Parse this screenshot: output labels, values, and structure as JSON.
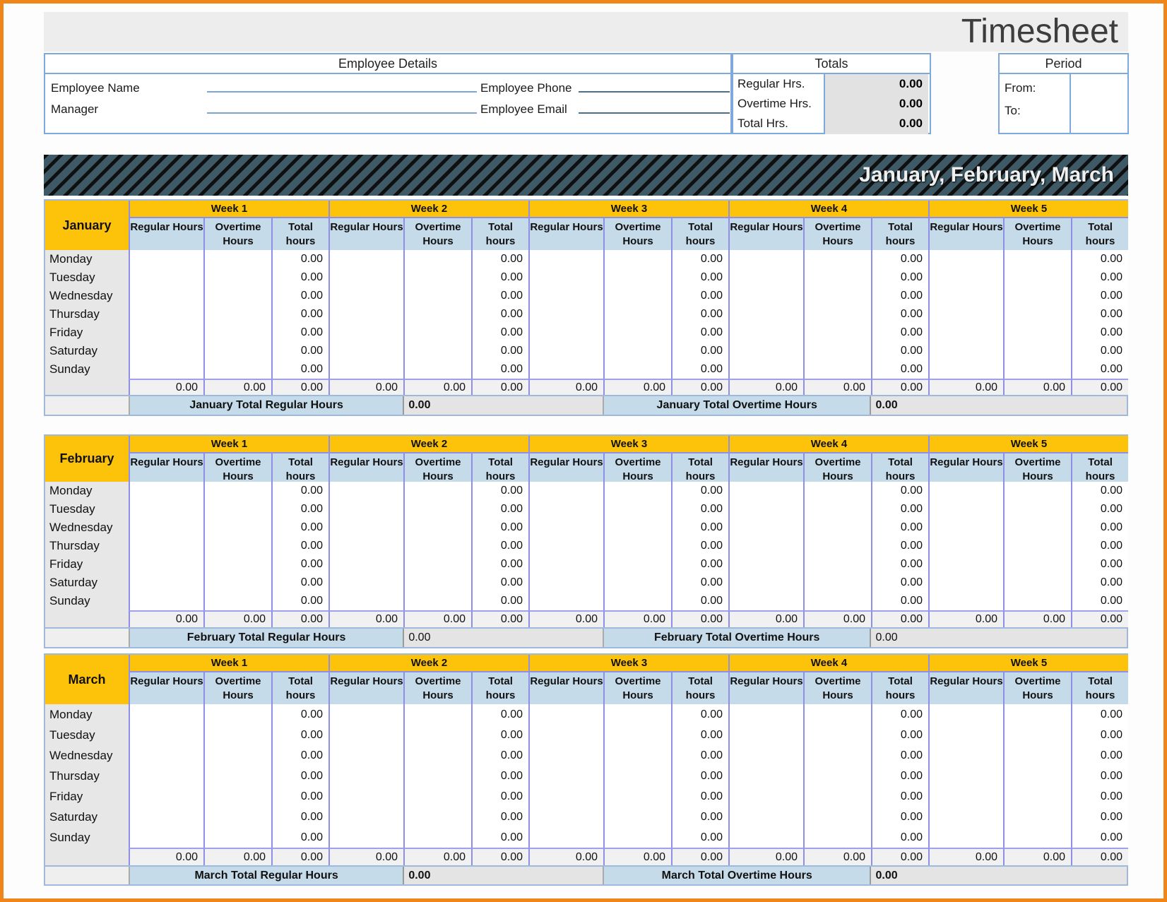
{
  "title": "Timesheet",
  "employee_details": {
    "header": "Employee Details",
    "name_label": "Employee Name",
    "manager_label": "Manager",
    "phone_label": "Employee Phone",
    "email_label": "Employee Email",
    "name_value": "",
    "manager_value": "",
    "phone_value": "",
    "email_value": ""
  },
  "totals": {
    "header": "Totals",
    "rows": [
      {
        "label": "Regular Hrs.",
        "value": "0.00"
      },
      {
        "label": "Overtime Hrs.",
        "value": "0.00"
      },
      {
        "label": "Total Hrs.",
        "value": "0.00"
      }
    ]
  },
  "period": {
    "header": "Period",
    "from_label": "From:",
    "to_label": "To:",
    "from_value": "",
    "to_value": ""
  },
  "banner_title": "January, February, March",
  "timesheet_table": {
    "week_headers": [
      "Week 1",
      "Week 2",
      "Week 3",
      "Week 4",
      "Week 5"
    ],
    "column_headers": [
      "Regular Hours",
      "Overtime Hours",
      "Total hours"
    ],
    "day_labels": [
      "Monday",
      "Tuesday",
      "Wednesday",
      "Thursday",
      "Friday",
      "Saturday",
      "Sunday"
    ],
    "empty_cell_value": "",
    "total_hours_cell_value": "0.00",
    "week_subtotal_value": "0.00"
  },
  "months": [
    {
      "name": "January",
      "total_regular_label": "January Total Regular Hours",
      "total_regular_value": "0.00",
      "total_overtime_label": "January Total Overtime Hours",
      "total_overtime_value": "0.00"
    },
    {
      "name": "February",
      "total_regular_label": "February Total Regular Hours",
      "total_regular_value": "0.00",
      "total_overtime_label": "February Total Overtime Hours",
      "total_overtime_value": "0.00"
    },
    {
      "name": "March",
      "total_regular_label": "March Total Regular Hours",
      "total_regular_value": "0.00",
      "total_overtime_label": "March Total Overtime Hours",
      "total_overtime_value": "0.00"
    }
  ],
  "colors": {
    "page_border": "#F08519",
    "week_header_yellow": "#FDC30B",
    "subheader_blue": "#C5DBE9",
    "banner_teal": "#3E5A66",
    "banner_stripe_black": "#101010",
    "grid_line_purple": "#8F8FE8",
    "box_border_blue": "#7EA9DC",
    "value_cell_gray": "#E2E2E2"
  }
}
